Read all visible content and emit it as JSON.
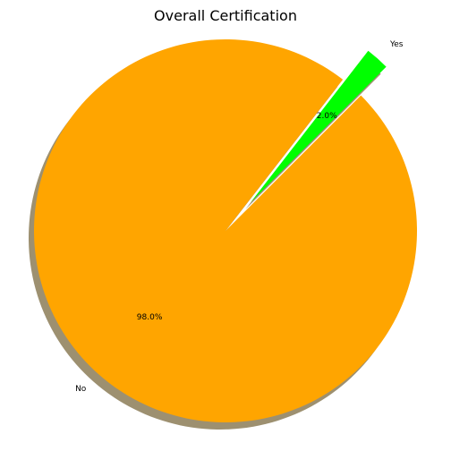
{
  "chart_data": {
    "type": "pie",
    "title": "Overall Certification",
    "slices": [
      {
        "label": "Yes",
        "value": 2.0,
        "pct_label": "2.0%",
        "color": "#00ff00",
        "exploded": true
      },
      {
        "label": "No",
        "value": 98.0,
        "pct_label": "98.0%",
        "color": "#ffa500",
        "exploded": false
      }
    ],
    "shadow": true,
    "shadow_color": "#9d9070"
  }
}
